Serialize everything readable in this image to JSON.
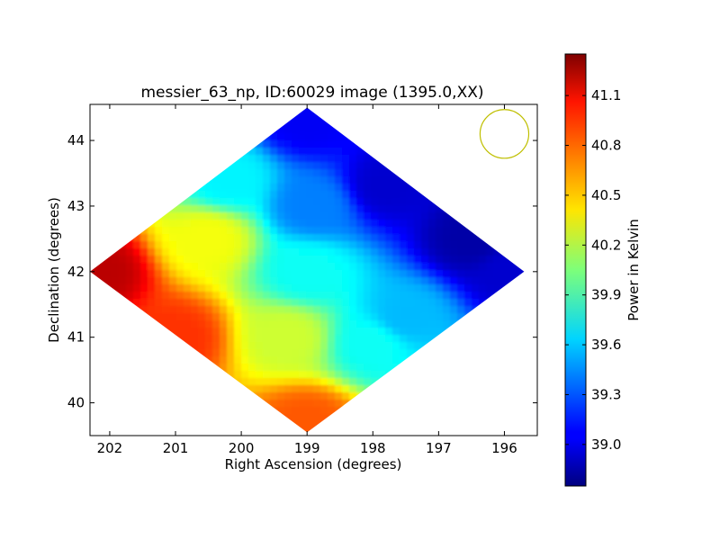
{
  "chart_data": {
    "type": "heatmap",
    "title": "messier_63_np, ID:60029 image (1395.0,XX)",
    "xlabel": "Right Ascension (degrees)",
    "ylabel": "Declination (degrees)",
    "xlim": [
      202.3,
      195.5
    ],
    "ylim": [
      39.5,
      44.55
    ],
    "x_ticks": [
      202,
      201,
      200,
      199,
      198,
      197,
      196
    ],
    "x_tick_labels": [
      "202",
      "201",
      "200",
      "199",
      "198",
      "197",
      "196"
    ],
    "y_ticks": [
      40,
      41,
      42,
      43,
      44
    ],
    "y_tick_labels": [
      "40",
      "41",
      "42",
      "43",
      "44"
    ],
    "colormap": "jet",
    "colorbar": {
      "label": "Power in Kelvin",
      "range": [
        38.75,
        41.35
      ],
      "ticks": [
        39.0,
        39.3,
        39.6,
        39.9,
        40.2,
        40.5,
        40.8,
        41.1
      ],
      "tick_labels": [
        "39.0",
        "39.3",
        "39.6",
        "39.9",
        "40.2",
        "40.5",
        "40.8",
        "41.1"
      ]
    },
    "footprint": {
      "shape": "diamond",
      "vertices": [
        [
          202.3,
          42.0
        ],
        [
          199.0,
          44.5
        ],
        [
          195.7,
          42.0
        ],
        [
          199.0,
          39.55
        ]
      ]
    },
    "value_samples": [
      {
        "ra": 202.2,
        "dec": 42.0,
        "value": 41.2
      },
      {
        "ra": 201.0,
        "dec": 41.0,
        "value": 40.9
      },
      {
        "ra": 199.0,
        "dec": 39.7,
        "value": 40.8
      },
      {
        "ra": 200.5,
        "dec": 42.5,
        "value": 40.35
      },
      {
        "ra": 199.3,
        "dec": 41.0,
        "value": 40.25
      },
      {
        "ra": 199.0,
        "dec": 42.0,
        "value": 39.75
      },
      {
        "ra": 198.0,
        "dec": 40.9,
        "value": 39.75
      },
      {
        "ra": 197.5,
        "dec": 41.3,
        "value": 39.55
      },
      {
        "ra": 200.2,
        "dec": 43.4,
        "value": 39.7
      },
      {
        "ra": 198.9,
        "dec": 43.0,
        "value": 39.4
      },
      {
        "ra": 199.0,
        "dec": 44.3,
        "value": 39.05
      },
      {
        "ra": 197.8,
        "dec": 43.3,
        "value": 38.95
      },
      {
        "ra": 196.5,
        "dec": 42.5,
        "value": 38.85
      },
      {
        "ra": 195.9,
        "dec": 42.0,
        "value": 38.95
      }
    ],
    "beam_marker": {
      "ra": 196.0,
      "dec": 44.1,
      "radius_deg": 0.37,
      "color": "#bfbf00"
    },
    "grid": false
  }
}
